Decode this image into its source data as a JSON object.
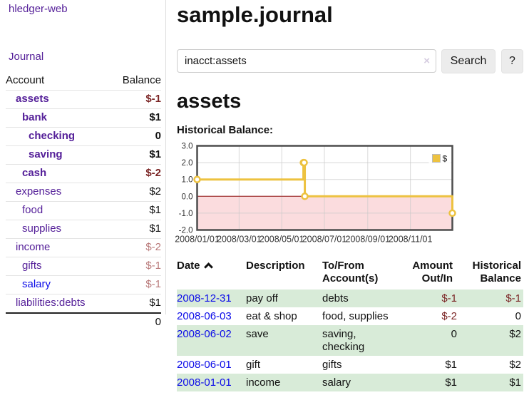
{
  "app": {
    "brand": "hledger-web"
  },
  "nav": {
    "journal": "Journal"
  },
  "sidebar": {
    "accounts_header": {
      "account": "Account",
      "balance": "Balance"
    },
    "accounts": [
      {
        "name": "assets",
        "indent": 1,
        "balance": "$-1",
        "bold": true,
        "balance_tone": "neg-dark"
      },
      {
        "name": "bank",
        "indent": 2,
        "balance": "$1",
        "bold": true,
        "balance_tone": ""
      },
      {
        "name": "checking",
        "indent": 3,
        "balance": "0",
        "bold": true,
        "balance_tone": ""
      },
      {
        "name": "saving",
        "indent": 3,
        "balance": "$1",
        "bold": true,
        "balance_tone": ""
      },
      {
        "name": "cash",
        "indent": 2,
        "balance": "$-2",
        "bold": true,
        "balance_tone": "neg-dark"
      },
      {
        "name": "expenses",
        "indent": 1,
        "balance": "$2",
        "bold": false,
        "balance_tone": ""
      },
      {
        "name": "food",
        "indent": 2,
        "balance": "$1",
        "bold": false,
        "balance_tone": ""
      },
      {
        "name": "supplies",
        "indent": 2,
        "balance": "$1",
        "bold": false,
        "balance_tone": ""
      },
      {
        "name": "income",
        "indent": 1,
        "balance": "$-2",
        "bold": false,
        "balance_tone": "neg-light"
      },
      {
        "name": "gifts",
        "indent": 2,
        "balance": "$-1",
        "bold": false,
        "balance_tone": "neg-light"
      },
      {
        "name": "salary",
        "indent": 2,
        "balance": "$-1",
        "bold": false,
        "balance_tone": "neg-light",
        "blue": true
      },
      {
        "name": "liabilities:debts",
        "indent": 1,
        "balance": "$1",
        "bold": false,
        "balance_tone": ""
      }
    ],
    "total": "0"
  },
  "header": {
    "title": "sample.journal"
  },
  "search": {
    "value": "inacct:assets",
    "clear_icon": "×",
    "button": "Search",
    "help_button": "?"
  },
  "account_page": {
    "title": "assets",
    "chart_label": "Historical Balance:"
  },
  "chart_data": {
    "type": "line",
    "step": true,
    "title": "Historical Balance",
    "series": [
      {
        "name": "$",
        "color": "#edc240",
        "points": [
          [
            "2008-01-01",
            1
          ],
          [
            "2008-06-01",
            2
          ],
          [
            "2008-06-02",
            2
          ],
          [
            "2008-06-03",
            0
          ],
          [
            "2008-12-31",
            -1
          ]
        ]
      }
    ],
    "x_ticks": [
      {
        "date": "2008-01-01",
        "label": "2008/01/01"
      },
      {
        "date": "2008-03-01",
        "label": "2008/03/01"
      },
      {
        "date": "2008-05-01",
        "label": "2008/05/01"
      },
      {
        "date": "2008-07-01",
        "label": "2008/07/01"
      },
      {
        "date": "2008-09-01",
        "label": "2008/09/01"
      },
      {
        "date": "2008-11-01",
        "label": "2008/11/01"
      }
    ],
    "y_ticks": [
      {
        "v": 3,
        "label": "3.0"
      },
      {
        "v": 2,
        "label": "2.0"
      },
      {
        "v": 1,
        "label": "1.0"
      },
      {
        "v": 0,
        "label": "0.0"
      },
      {
        "v": -1,
        "label": "-1.0"
      },
      {
        "v": -2,
        "label": "-2.0"
      }
    ],
    "ylim": [
      -2,
      3
    ],
    "xlim_dates": [
      "2008-01-01",
      "2008-12-31"
    ],
    "negative_region": true,
    "grid": true,
    "legend": {
      "label": "$",
      "position": "top-right"
    }
  },
  "register": {
    "columns": [
      {
        "label": "Date",
        "align": "left",
        "sorted": "asc"
      },
      {
        "label": "Description",
        "align": "left"
      },
      {
        "label": "To/From\nAccount(s)",
        "align": "left"
      },
      {
        "label": "Amount\nOut/In",
        "align": "right"
      },
      {
        "label": "Historical\nBalance",
        "align": "right"
      }
    ],
    "rows": [
      {
        "date": "2008-12-31",
        "description": "pay off",
        "accounts": "debts",
        "amount": "$-1",
        "balance": "$-1"
      },
      {
        "date": "2008-06-03",
        "description": "eat & shop",
        "accounts": "food, supplies",
        "amount": "$-2",
        "balance": "0"
      },
      {
        "date": "2008-06-02",
        "description": "save",
        "accounts": "saving, checking",
        "amount": "0",
        "balance": "$2"
      },
      {
        "date": "2008-06-01",
        "description": "gift",
        "accounts": "gifts",
        "amount": "$1",
        "balance": "$2"
      },
      {
        "date": "2008-01-01",
        "description": "income",
        "accounts": "salary",
        "amount": "$1",
        "balance": "$1"
      }
    ]
  },
  "colors": {
    "purple_link": "#552099",
    "blue_link": "#0c0ce8",
    "negative_dark": "#7b2525",
    "negative_light": "#b97a7a",
    "stripe_green": "#d8ebd8",
    "chart_yellow": "#edc240",
    "negative_region": "#fbdcde",
    "zero_line": "#a94444"
  }
}
